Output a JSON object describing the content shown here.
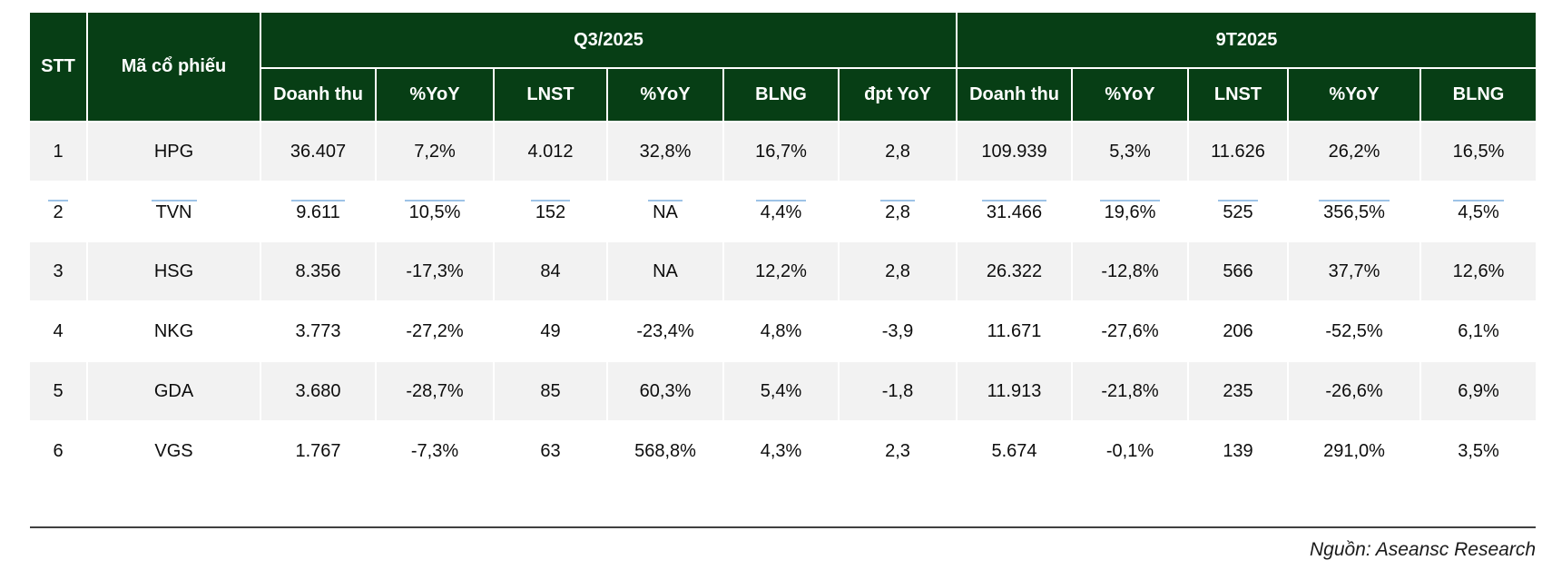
{
  "colors": {
    "header_green": "#073e15",
    "row_alt_gray": "#f2f2f2",
    "edit_mark_blue": "#9dc3e6",
    "rule_dark": "#404040"
  },
  "table": {
    "corner": {
      "stt": "STT",
      "ticker": "Mã cổ phiếu"
    },
    "groups": [
      {
        "label": "Q3/2025",
        "columns": [
          "Doanh thu",
          "%YoY",
          "LNST",
          "%YoY",
          "BLNG",
          "đpt YoY"
        ]
      },
      {
        "label": "9T2025",
        "columns": [
          "Doanh thu",
          "%YoY",
          "LNST",
          "%YoY",
          "BLNG"
        ]
      }
    ],
    "rows": [
      {
        "stt": "1",
        "ticker": "HPG",
        "edit_marks": false,
        "q3": [
          "36.407",
          "7,2%",
          "4.012",
          "32,8%",
          "16,7%",
          "2,8"
        ],
        "t9": [
          "109.939",
          "5,3%",
          "11.626",
          "26,2%",
          "16,5%"
        ]
      },
      {
        "stt": "2",
        "ticker": "TVN",
        "edit_marks": true,
        "q3": [
          "9.611",
          "10,5%",
          "152",
          "NA",
          "4,4%",
          "2,8"
        ],
        "t9": [
          "31.466",
          "19,6%",
          "525",
          "356,5%",
          "4,5%"
        ]
      },
      {
        "stt": "3",
        "ticker": "HSG",
        "edit_marks": false,
        "q3": [
          "8.356",
          "-17,3%",
          "84",
          "NA",
          "12,2%",
          "2,8"
        ],
        "t9": [
          "26.322",
          "-12,8%",
          "566",
          "37,7%",
          "12,6%"
        ]
      },
      {
        "stt": "4",
        "ticker": "NKG",
        "edit_marks": false,
        "q3": [
          "3.773",
          "-27,2%",
          "49",
          "-23,4%",
          "4,8%",
          "-3,9"
        ],
        "t9": [
          "11.671",
          "-27,6%",
          "206",
          "-52,5%",
          "6,1%"
        ]
      },
      {
        "stt": "5",
        "ticker": "GDA",
        "edit_marks": false,
        "q3": [
          "3.680",
          "-28,7%",
          "85",
          "60,3%",
          "5,4%",
          "-1,8"
        ],
        "t9": [
          "11.913",
          "-21,8%",
          "235",
          "-26,6%",
          "6,9%"
        ]
      },
      {
        "stt": "6",
        "ticker": "VGS",
        "edit_marks": false,
        "q3": [
          "1.767",
          "-7,3%",
          "63",
          "568,8%",
          "4,3%",
          "2,3"
        ],
        "t9": [
          "5.674",
          "-0,1%",
          "139",
          "291,0%",
          "3,5%"
        ]
      }
    ]
  },
  "footer": {
    "source": "Nguồn: Aseansc Research"
  }
}
